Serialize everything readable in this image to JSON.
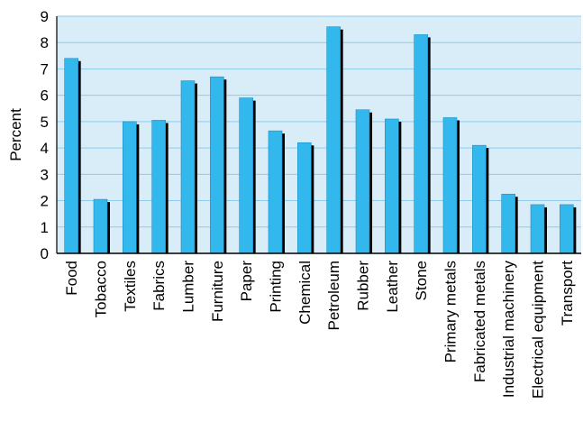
{
  "chart_data": {
    "type": "bar",
    "ylabel": "Percent",
    "ylim": [
      0,
      9
    ],
    "yticks": [
      0,
      1,
      2,
      3,
      4,
      5,
      6,
      7,
      8,
      9
    ],
    "grid": true,
    "legend": "none",
    "categories": [
      "Food",
      "Tobacco",
      "Textiles",
      "Fabrics",
      "Lumber",
      "Furniture",
      "Paper",
      "Printing",
      "Chemical",
      "Petroleum",
      "Rubber",
      "Leather",
      "Stone",
      "Primary metals",
      "Fabricated metals",
      "Industrial machinery",
      "Electrical equipment",
      "Transport"
    ],
    "values": [
      7.4,
      2.05,
      5.0,
      5.05,
      6.55,
      6.7,
      5.9,
      4.65,
      4.2,
      8.6,
      5.45,
      5.1,
      8.3,
      5.15,
      4.1,
      2.25,
      1.85,
      1.85
    ],
    "colors": {
      "bar": "#33b8ee",
      "bar_shadow": "#000000",
      "plot_background": "#d9edf8",
      "gridline": "#8fcbea",
      "axis": "#000000"
    }
  }
}
